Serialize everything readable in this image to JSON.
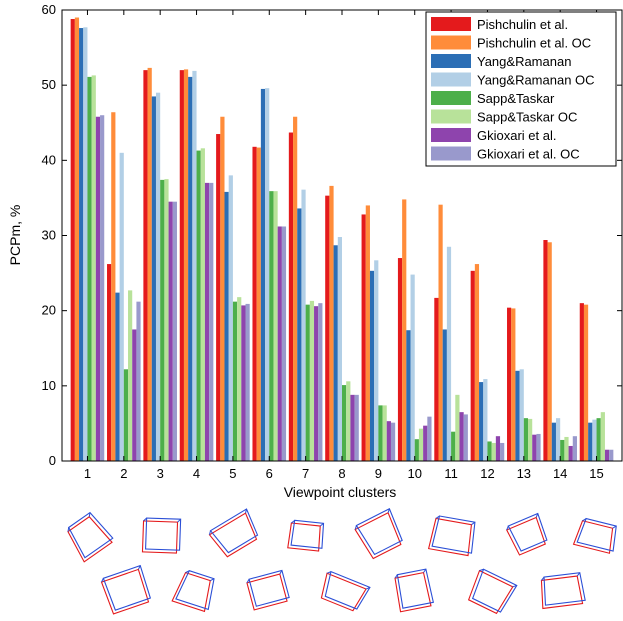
{
  "chart_data": {
    "type": "bar",
    "xlabel": "Viewpoint clusters",
    "ylabel": "PCPm, %",
    "ylim": [
      0,
      60
    ],
    "yticks": [
      0,
      10,
      20,
      30,
      40,
      50,
      60
    ],
    "grid": false,
    "legend_position": "top-right",
    "categories": [
      "1",
      "2",
      "3",
      "4",
      "5",
      "6",
      "7",
      "8",
      "9",
      "10",
      "11",
      "12",
      "13",
      "14",
      "15"
    ],
    "series": [
      {
        "name": "Pishchulin et al.",
        "color": "#e41a1c",
        "values": [
          58.8,
          26.2,
          52.0,
          52.0,
          43.5,
          41.8,
          43.7,
          35.3,
          32.8,
          27.0,
          21.7,
          25.3,
          20.4,
          29.4,
          21.0
        ]
      },
      {
        "name": "Pishchulin et al. OC",
        "color": "#ff8c3a",
        "values": [
          59.0,
          46.4,
          52.3,
          52.1,
          45.8,
          41.7,
          45.8,
          36.6,
          34.0,
          34.8,
          34.1,
          26.2,
          20.3,
          29.1,
          20.8
        ]
      },
      {
        "name": "Yang&Ramanan",
        "color": "#2b6eb5",
        "values": [
          57.6,
          22.4,
          48.5,
          51.1,
          35.8,
          49.5,
          33.6,
          28.7,
          25.3,
          17.4,
          17.5,
          10.5,
          12.0,
          5.1,
          5.1
        ]
      },
      {
        "name": "Yang&Ramanan OC",
        "color": "#b2cfe6",
        "values": [
          57.7,
          41.0,
          49.0,
          51.9,
          38.0,
          49.6,
          36.1,
          29.8,
          26.7,
          24.8,
          28.5,
          10.9,
          12.2,
          5.7,
          5.5
        ]
      },
      {
        "name": "Sapp&Taskar",
        "color": "#4daf4a",
        "values": [
          51.1,
          12.2,
          37.4,
          41.3,
          21.2,
          35.9,
          20.8,
          10.1,
          7.4,
          2.9,
          3.9,
          2.6,
          5.7,
          2.8,
          5.7
        ]
      },
      {
        "name": "Sapp&Taskar OC",
        "color": "#b8e29a",
        "values": [
          51.3,
          22.7,
          37.5,
          41.6,
          21.8,
          35.9,
          21.3,
          10.6,
          7.4,
          4.3,
          8.8,
          2.4,
          5.6,
          3.2,
          6.5
        ]
      },
      {
        "name": "Gkioxari et al.",
        "color": "#8e44ad",
        "values": [
          45.8,
          17.5,
          34.5,
          37.0,
          20.7,
          31.2,
          20.6,
          8.8,
          5.3,
          4.7,
          6.5,
          3.3,
          3.5,
          2.0,
          1.5
        ]
      },
      {
        "name": "Gkioxari et al. OC",
        "color": "#9999cc",
        "values": [
          46.0,
          21.2,
          34.5,
          37.0,
          20.9,
          31.2,
          21.0,
          8.8,
          5.1,
          5.9,
          6.2,
          2.4,
          3.6,
          3.3,
          1.5
        ]
      }
    ]
  }
}
